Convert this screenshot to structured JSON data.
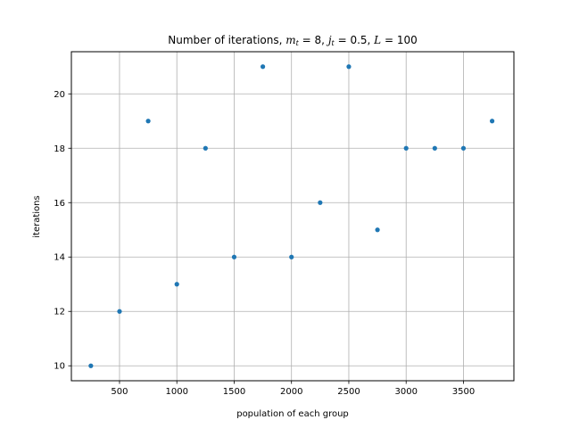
{
  "chart_data": {
    "type": "scatter",
    "title": {
      "prefix": "Number of iterations, ",
      "m_var": "m",
      "m_sub": "t",
      "m_val": " = 8, ",
      "j_var": "j",
      "j_sub": "t",
      "j_val": " = 0.5, ",
      "L_var": "L",
      "L_val": " = 100"
    },
    "xlabel": "population of each group",
    "ylabel": "iterations",
    "xlim": [
      80,
      3940
    ],
    "ylim": [
      9.45,
      21.55
    ],
    "xticks": [
      500,
      1000,
      1500,
      2000,
      2500,
      3000,
      3500
    ],
    "yticks": [
      10,
      12,
      14,
      16,
      18,
      20
    ],
    "grid": true,
    "marker_color": "#1f77b4",
    "series": [
      {
        "x": [
          250,
          500,
          750,
          1000,
          1250,
          1500,
          1750,
          2000,
          2250,
          2500,
          2750,
          3000,
          3250,
          3500,
          3750
        ],
        "y": [
          10,
          12,
          19,
          13,
          18,
          14,
          21,
          14,
          16,
          21,
          15,
          18,
          18,
          18,
          19
        ]
      }
    ]
  }
}
